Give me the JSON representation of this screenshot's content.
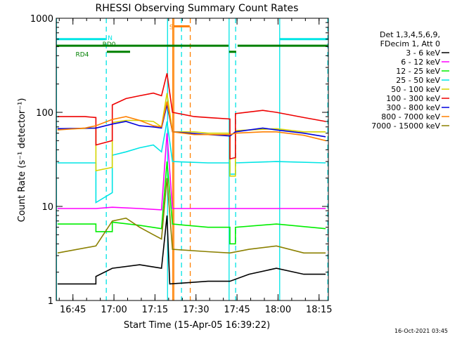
{
  "chart_data": {
    "type": "line",
    "title": "RHESSI Observing Summary Count Rates",
    "xlabel": "Start Time (15-Apr-05 16:39:22)",
    "ylabel": "Count Rate (s⁻¹ detector⁻¹)",
    "yscale": "log",
    "ylim": [
      1,
      1000
    ],
    "xlim_minutes": [
      -0.5,
      99
    ],
    "x_ticks": [
      {
        "label": "16:45",
        "minutes": 5.6
      },
      {
        "label": "17:00",
        "minutes": 20.6
      },
      {
        "label": "17:15",
        "minutes": 35.6
      },
      {
        "label": "17:30",
        "minutes": 50.6
      },
      {
        "label": "17:45",
        "minutes": 65.6
      },
      {
        "label": "18:00",
        "minutes": 80.6
      },
      {
        "label": "18:15",
        "minutes": 95.6
      }
    ],
    "y_ticks": [
      {
        "label": "1",
        "value": 1
      },
      {
        "label": "10",
        "value": 10
      },
      {
        "label": "100",
        "value": 100
      },
      {
        "label": "1000",
        "value": 1000
      }
    ],
    "legend_header": [
      "Det 1,3,4,5,6,9,",
      "FDecim 1, Att 0"
    ],
    "legend_position": "right",
    "series": [
      {
        "name": "3 - 6 keV",
        "color": "#000000",
        "points": [
          [
            0,
            1.5
          ],
          [
            14,
            1.5
          ],
          [
            14,
            1.8
          ],
          [
            20,
            2.2
          ],
          [
            30,
            2.4
          ],
          [
            38,
            2.2
          ],
          [
            40,
            8
          ],
          [
            41,
            1.5
          ],
          [
            55,
            1.6
          ],
          [
            63,
            1.6
          ],
          [
            70,
            1.9
          ],
          [
            80,
            2.2
          ],
          [
            90,
            1.9
          ],
          [
            98,
            1.9
          ]
        ]
      },
      {
        "name": "6 - 12 keV",
        "color": "#ff00ff",
        "points": [
          [
            0,
            9.5
          ],
          [
            14,
            9.5
          ],
          [
            20,
            9.8
          ],
          [
            30,
            9.5
          ],
          [
            38,
            9.2
          ],
          [
            40,
            60
          ],
          [
            42,
            9.5
          ],
          [
            55,
            9.5
          ],
          [
            65,
            9.5
          ],
          [
            80,
            9.5
          ],
          [
            98,
            9.5
          ]
        ]
      },
      {
        "name": "12 - 25 keV",
        "color": "#00ee00",
        "points": [
          [
            0,
            6.5
          ],
          [
            14,
            6.5
          ],
          [
            14,
            5.4
          ],
          [
            20,
            5.4
          ],
          [
            20,
            6.8
          ],
          [
            30,
            6.3
          ],
          [
            38,
            5.8
          ],
          [
            40,
            30
          ],
          [
            42,
            6.5
          ],
          [
            55,
            6
          ],
          [
            63,
            6
          ],
          [
            63,
            4
          ],
          [
            65,
            4
          ],
          [
            65,
            6
          ],
          [
            80,
            6.5
          ],
          [
            98,
            5.8
          ]
        ]
      },
      {
        "name": "25 - 50 keV",
        "color": "#00e5e5",
        "points": [
          [
            0,
            29
          ],
          [
            14,
            29
          ],
          [
            14,
            11
          ],
          [
            20,
            14
          ],
          [
            20,
            35
          ],
          [
            25,
            38
          ],
          [
            30,
            42
          ],
          [
            35,
            45
          ],
          [
            38,
            38
          ],
          [
            40,
            80
          ],
          [
            42,
            30
          ],
          [
            55,
            29
          ],
          [
            63,
            29
          ],
          [
            63,
            22
          ],
          [
            65,
            22
          ],
          [
            65,
            29
          ],
          [
            80,
            30
          ],
          [
            98,
            29
          ]
        ]
      },
      {
        "name": "50 - 100 keV",
        "color": "#d4d400",
        "points": [
          [
            0,
            66
          ],
          [
            14,
            68
          ],
          [
            14,
            24
          ],
          [
            20,
            26
          ],
          [
            20,
            78
          ],
          [
            25,
            82
          ],
          [
            30,
            82
          ],
          [
            35,
            80
          ],
          [
            38,
            70
          ],
          [
            40,
            160
          ],
          [
            42,
            62
          ],
          [
            50,
            62
          ],
          [
            55,
            60
          ],
          [
            63,
            60
          ],
          [
            63,
            21
          ],
          [
            65,
            21
          ],
          [
            65,
            64
          ],
          [
            75,
            66
          ],
          [
            80,
            67
          ],
          [
            90,
            62
          ],
          [
            98,
            62
          ]
        ]
      },
      {
        "name": "100 - 300 keV",
        "color": "#ee0000",
        "points": [
          [
            0,
            90
          ],
          [
            10,
            90
          ],
          [
            14,
            88
          ],
          [
            14,
            45
          ],
          [
            20,
            50
          ],
          [
            20,
            120
          ],
          [
            25,
            140
          ],
          [
            30,
            150
          ],
          [
            35,
            160
          ],
          [
            38,
            150
          ],
          [
            40,
            260
          ],
          [
            42,
            100
          ],
          [
            50,
            90
          ],
          [
            55,
            88
          ],
          [
            63,
            85
          ],
          [
            63,
            32
          ],
          [
            65,
            33
          ],
          [
            65,
            97
          ],
          [
            75,
            105
          ],
          [
            80,
            100
          ],
          [
            90,
            88
          ],
          [
            98,
            80
          ]
        ]
      },
      {
        "name": "300 - 800 keV",
        "color": "#0000dd",
        "points": [
          [
            0,
            67
          ],
          [
            14,
            68
          ],
          [
            20,
            75
          ],
          [
            25,
            80
          ],
          [
            30,
            72
          ],
          [
            35,
            70
          ],
          [
            38,
            68
          ],
          [
            40,
            120
          ],
          [
            42,
            62
          ],
          [
            55,
            58
          ],
          [
            63,
            56
          ],
          [
            65,
            62
          ],
          [
            75,
            68
          ],
          [
            80,
            65
          ],
          [
            90,
            60
          ],
          [
            98,
            55
          ]
        ]
      },
      {
        "name": "800 - 7000 keV",
        "color": "#ff8000",
        "points": [
          [
            0,
            65
          ],
          [
            10,
            68
          ],
          [
            14,
            72
          ],
          [
            20,
            84
          ],
          [
            25,
            90
          ],
          [
            30,
            82
          ],
          [
            35,
            72
          ],
          [
            38,
            70
          ],
          [
            40,
            130
          ],
          [
            42,
            62
          ],
          [
            50,
            58
          ],
          [
            55,
            58
          ],
          [
            63,
            58
          ],
          [
            65,
            60
          ],
          [
            75,
            62
          ],
          [
            80,
            62
          ],
          [
            90,
            57
          ],
          [
            98,
            50
          ]
        ]
      },
      {
        "name": "7000 - 15000 keV",
        "color": "#8b8000",
        "points": [
          [
            0,
            3.2
          ],
          [
            14,
            3.8
          ],
          [
            20,
            7
          ],
          [
            25,
            7.5
          ],
          [
            30,
            6
          ],
          [
            35,
            5
          ],
          [
            38,
            4.5
          ],
          [
            40,
            20
          ],
          [
            42,
            3.5
          ],
          [
            55,
            3.3
          ],
          [
            63,
            3.2
          ],
          [
            70,
            3.5
          ],
          [
            80,
            3.8
          ],
          [
            90,
            3.2
          ],
          [
            98,
            3.2
          ]
        ]
      }
    ],
    "annotations": {
      "vertical_lines": [
        {
          "minutes": -0.4,
          "color": "#00e5e5",
          "style": "solid"
        },
        {
          "minutes": 17.8,
          "color": "#00e5e5",
          "style": "dashed"
        },
        {
          "minutes": 40.2,
          "color": "#00e5e5",
          "style": "solid"
        },
        {
          "minutes": 45.3,
          "color": "#00e5e5",
          "style": "dashed"
        },
        {
          "minutes": 62.7,
          "color": "#00e5e5",
          "style": "solid"
        },
        {
          "minutes": 65.1,
          "color": "#00e5e5",
          "style": "dashed"
        },
        {
          "minutes": 81.2,
          "color": "#00e5e5",
          "style": "solid"
        },
        {
          "minutes": 98.8,
          "color": "#00e5e5",
          "style": "dashed"
        },
        {
          "minutes": 42.1,
          "color": "#ff8000",
          "style": "solid"
        },
        {
          "minutes": 42.5,
          "color": "#ff8000",
          "style": "solid"
        },
        {
          "minutes": 48.5,
          "color": "#ff8000",
          "style": "dashed"
        }
      ],
      "bars": [
        {
          "start": -0.4,
          "end": 17.6,
          "value": 600,
          "color": "#00e5e5",
          "label": "",
          "label_at": 0
        },
        {
          "start": 81.2,
          "end": 98.8,
          "value": 600,
          "color": "#00e5e5",
          "label": "",
          "label_at": 0
        },
        {
          "start": 42.5,
          "end": 48.3,
          "value": 820,
          "color": "#ff8000",
          "label": "S",
          "label_at": 41.6
        },
        {
          "start": -0.4,
          "end": 62.5,
          "value": 510,
          "color": "#008000",
          "label": "",
          "label_at": 0
        },
        {
          "start": 62.7,
          "end": 65.3,
          "value": 440,
          "color": "#008000",
          "label": "",
          "label_at": 0
        },
        {
          "start": 65.8,
          "end": 98.8,
          "value": 510,
          "color": "#008000",
          "label": "",
          "label_at": 0
        },
        {
          "start": 18.0,
          "end": 26.5,
          "value": 440,
          "color": "#008000",
          "label": "",
          "label_at": 0
        }
      ],
      "labels": [
        {
          "text": "N",
          "minutes": 19.2,
          "value": 630,
          "color": "#00e5e5"
        },
        {
          "text": "RD0",
          "minutes": 18.8,
          "value": 540,
          "color": "#008000"
        },
        {
          "text": "RD4",
          "minutes": 9.0,
          "value": 420,
          "color": "#008000"
        }
      ]
    },
    "footer_date": "16-Oct-2021 03:45"
  }
}
